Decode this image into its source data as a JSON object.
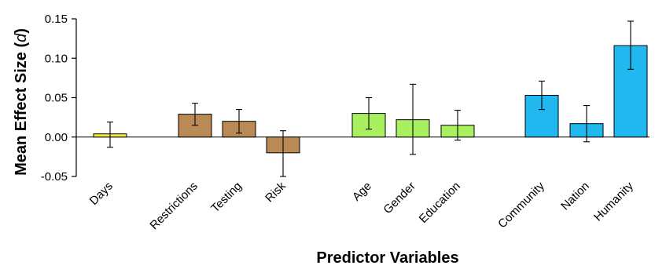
{
  "chart_data": {
    "type": "bar",
    "title": "",
    "xlabel": "Predictor Variables",
    "ylabel_main": "Mean Effect Size (",
    "ylabel_symbol": "d",
    "ylabel_close": ")",
    "ylim": [
      -0.05,
      0.15
    ],
    "yticks": [
      {
        "value": 0.15,
        "label": "0.15"
      },
      {
        "value": 0.1,
        "label": "0.10"
      },
      {
        "value": 0.05,
        "label": "0.05"
      },
      {
        "value": 0.0,
        "label": "0.00"
      },
      {
        "value": -0.05,
        "label": "-0.05"
      }
    ],
    "grid": false,
    "bars": [
      {
        "category": "Days",
        "value": 0.004,
        "err_low": -0.013,
        "err_high": 0.019,
        "color": "#f5f03c"
      },
      {
        "category": "Restrictions",
        "value": 0.029,
        "err_low": 0.015,
        "err_high": 0.043,
        "color": "#b98a56"
      },
      {
        "category": "Testing",
        "value": 0.02,
        "err_low": 0.005,
        "err_high": 0.035,
        "color": "#b98a56"
      },
      {
        "category": "Risk",
        "value": -0.02,
        "err_low": -0.05,
        "err_high": 0.008,
        "color": "#b98a56"
      },
      {
        "category": "Age",
        "value": 0.03,
        "err_low": 0.01,
        "err_high": 0.05,
        "color": "#a8f060"
      },
      {
        "category": "Gender",
        "value": 0.022,
        "err_low": -0.022,
        "err_high": 0.067,
        "color": "#a8f060"
      },
      {
        "category": "Education",
        "value": 0.015,
        "err_low": -0.004,
        "err_high": 0.034,
        "color": "#a8f060"
      },
      {
        "category": "Community",
        "value": 0.053,
        "err_low": 0.035,
        "err_high": 0.071,
        "color": "#20b8ee"
      },
      {
        "category": "Nation",
        "value": 0.017,
        "err_low": -0.006,
        "err_high": 0.04,
        "color": "#20b8ee"
      },
      {
        "category": "Humanity",
        "value": 0.116,
        "err_low": 0.086,
        "err_high": 0.147,
        "color": "#20b8ee"
      }
    ]
  }
}
